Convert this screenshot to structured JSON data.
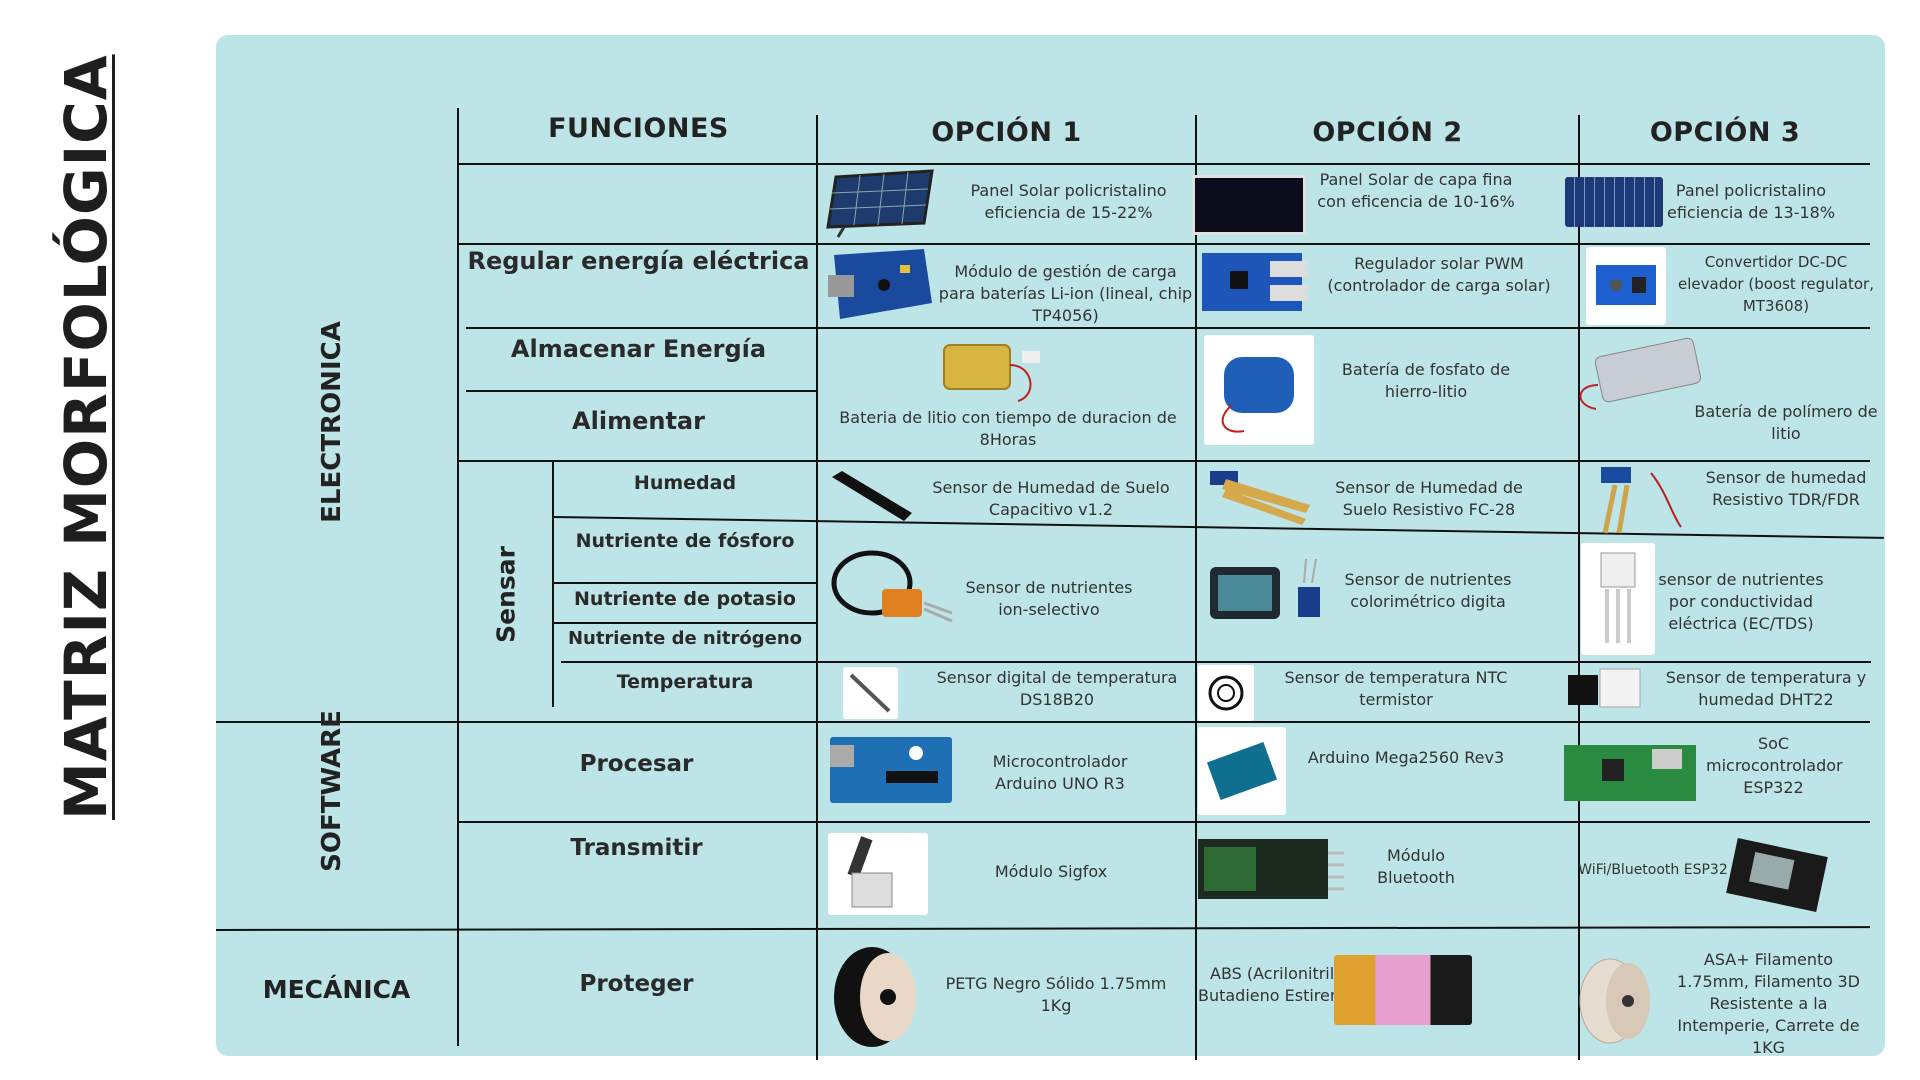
{
  "title": "MATRIZ MORFOLÓGICA",
  "headers": {
    "functions": "FUNCIONES",
    "opt1": "OPCIÓN 1",
    "opt2": "OPCIÓN 2",
    "opt3": "OPCIÓN 3"
  },
  "categories": {
    "electronics": "ELECTRONICA",
    "software": "SOFTWARE",
    "mechanics": "MECÁNICA"
  },
  "functions": {
    "regulate": "Regular energía eléctrica",
    "store": "Almacenar Energía",
    "feed": "Alimentar",
    "sense": "Sensar",
    "humidity": "Humedad",
    "phosphorus": "Nutriente de fósforo",
    "potassium": "Nutriente de potasio",
    "nitrogen": "Nutriente de nitrógeno",
    "temperature": "Temperatura",
    "process": "Procesar",
    "transmit": "Transmitir",
    "protect": "Proteger"
  },
  "options": {
    "solar": [
      "Panel Solar policristalino eficiencia de 15-22%",
      "Panel Solar de capa fina  con eficencia de 10-16%",
      "Panel policristalino eficiencia de 13-18%"
    ],
    "regulator": [
      "Módulo de gestión de carga para baterías Li-ion (lineal, chip TP4056)",
      "Regulador solar PWM (controlador de carga solar)",
      "Convertidor DC-DC elevador (boost regulator, MT3608)"
    ],
    "battery": [
      "Bateria de litio con tiempo de duracion de 8Horas",
      "Batería de fosfato de hierro-litio",
      "Batería de polímero de litio"
    ],
    "humidity": [
      "Sensor de Humedad de Suelo Capacitivo v1.2",
      "Sensor de Humedad de Suelo Resistivo FC-28",
      "Sensor de humedad Resistivo TDR/FDR"
    ],
    "nutrients": [
      "Sensor de nutrientes ion-selectivo",
      "Sensor de nutrientes colorimétrico digita",
      "sensor de nutrientes por conductividad eléctrica (EC/TDS)"
    ],
    "temperature": [
      "Sensor digital de temperatura DS18B20",
      "Sensor de temperatura NTC termistor",
      "Sensor de temperatura y humedad DHT22"
    ],
    "process": [
      "Microcontrolador Arduino UNO R3",
      "Arduino Mega2560 Rev3",
      "SoC microcontrolador ESP322"
    ],
    "transmit": [
      "Módulo Sigfox",
      "Módulo Bluetooth",
      "WiFi/Bluetooth ESP32"
    ],
    "protect": [
      "PETG Negro Sólido 1.75mm 1Kg",
      "ABS (Acrilonitrilo Butadieno Estireno)",
      "ASA+ Filamento 1.75mm, Filamento 3D Resistente a la Intemperie, Carrete de 1KG"
    ]
  }
}
